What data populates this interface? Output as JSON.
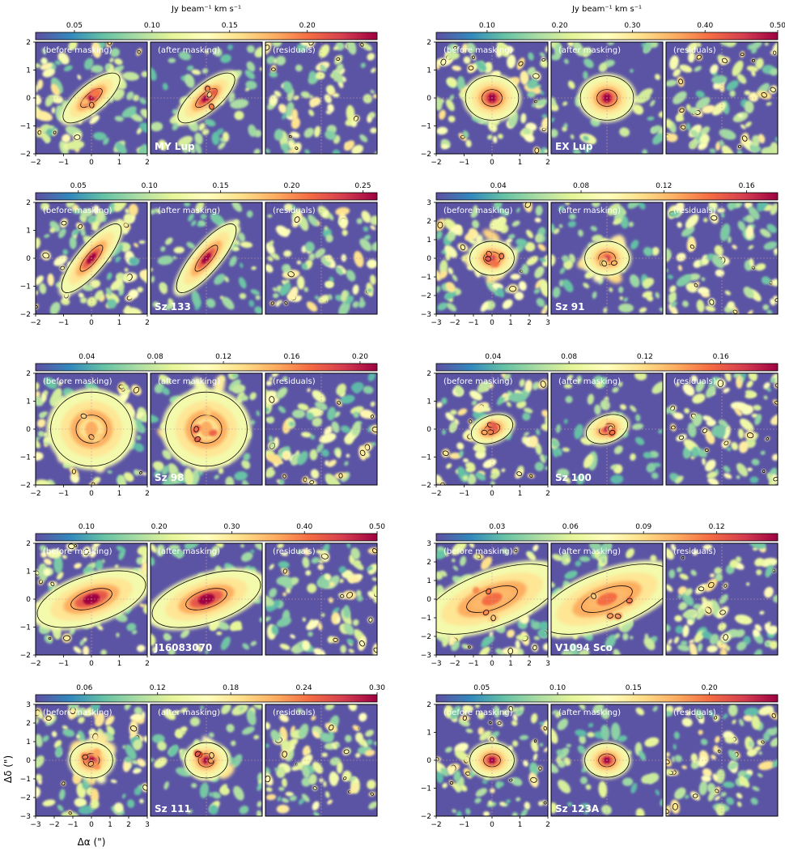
{
  "chart_data": {
    "type": "heatmap",
    "title": "",
    "colorbar_label": "Jy beam⁻¹ km s⁻¹",
    "panel_labels": [
      "(before masking)",
      "(after masking)",
      "(residuals)"
    ],
    "xlabel": "Δα (\")",
    "ylabel": "Δδ (\")",
    "colormap": [
      "#5e4fa2",
      "#3288bd",
      "#66c2a5",
      "#abdda4",
      "#e6f598",
      "#ffffbf",
      "#fee08b",
      "#fdae61",
      "#f46d43",
      "#d53e4f",
      "#9e0142"
    ],
    "background_color": "#5b54a4",
    "sources": [
      {
        "name": "MY Lup",
        "column": "left",
        "row": 1,
        "extent": 2,
        "x_ticks": [
          "−2",
          "−1",
          "0",
          "1",
          "2"
        ],
        "y_ticks": [
          "2",
          "1",
          "0",
          "−1",
          "−2"
        ],
        "cbar_ticks": [
          "0.05",
          "0.10",
          "0.15",
          "0.20"
        ],
        "cbar_range": [
          0.025,
          0.245
        ],
        "show_unit": true,
        "morphology": "elongated",
        "size": 0.18,
        "pa": -40,
        "ratio": 2.6,
        "peak": 1.0,
        "clumpy": true
      },
      {
        "name": "EX Lup",
        "column": "right",
        "row": 1,
        "extent": 2,
        "x_ticks": [
          "−2",
          "−1",
          "0",
          "1",
          "2"
        ],
        "y_ticks": [
          "2",
          "1",
          "0",
          "−1",
          "−2"
        ],
        "cbar_ticks": [
          "0.10",
          "0.20",
          "0.30",
          "0.40",
          "0.50"
        ],
        "cbar_range": [
          0.03,
          0.5
        ],
        "show_unit": true,
        "morphology": "compact",
        "size": 0.2,
        "pa": 0,
        "ratio": 1.2,
        "peak": 1.0,
        "clumpy": false
      },
      {
        "name": "Sz 133",
        "column": "left",
        "row": 2,
        "extent": 2,
        "x_ticks": [
          "−2",
          "−1",
          "0",
          "1",
          "2"
        ],
        "y_ticks": [
          "2",
          "1",
          "0",
          "−1",
          "−2"
        ],
        "cbar_ticks": [
          "0.05",
          "0.10",
          "0.15",
          "0.20",
          "0.25"
        ],
        "cbar_range": [
          0.02,
          0.26
        ],
        "show_unit": false,
        "morphology": "elongated",
        "size": 0.2,
        "pa": -50,
        "ratio": 3.2,
        "peak": 1.0,
        "clumpy": false
      },
      {
        "name": "Sz 91",
        "column": "right",
        "row": 2,
        "extent": 3,
        "x_ticks": [
          "−3",
          "−2",
          "−1",
          "0",
          "1",
          "2",
          "3"
        ],
        "y_ticks": [
          "3",
          "2",
          "1",
          "0",
          "−1",
          "−2",
          "−3"
        ],
        "cbar_ticks": [
          "0.04",
          "0.08",
          "0.12",
          "0.16"
        ],
        "cbar_range": [
          0.01,
          0.175
        ],
        "show_unit": false,
        "morphology": "ring",
        "size": 0.16,
        "pa": 0,
        "ratio": 1.3,
        "peak": 0.9,
        "clumpy": true
      },
      {
        "name": "Sz 98",
        "column": "left",
        "row": 3,
        "extent": 2,
        "x_ticks": [
          "−2",
          "−1",
          "0",
          "1",
          "2"
        ],
        "y_ticks": [
          "2",
          "1",
          "0",
          "−1",
          "−2"
        ],
        "cbar_ticks": [
          "0.04",
          "0.08",
          "0.12",
          "0.16",
          "0.20"
        ],
        "cbar_range": [
          0.01,
          0.21
        ],
        "show_unit": false,
        "morphology": "extended",
        "size": 0.32,
        "pa": 0,
        "ratio": 1.1,
        "peak": 0.7,
        "clumpy": true
      },
      {
        "name": "Sz 100",
        "column": "right",
        "row": 3,
        "extent": 2,
        "x_ticks": [
          "−2",
          "−1",
          "0",
          "1",
          "2"
        ],
        "y_ticks": [
          "2",
          "1",
          "0",
          "−1",
          "−2"
        ],
        "cbar_ticks": [
          "0.04",
          "0.08",
          "0.12",
          "0.16"
        ],
        "cbar_range": [
          0.01,
          0.19
        ],
        "show_unit": false,
        "morphology": "compact",
        "size": 0.14,
        "pa": -20,
        "ratio": 1.6,
        "peak": 0.95,
        "clumpy": true
      },
      {
        "name": "J16083070",
        "column": "left",
        "row": 4,
        "extent": 2,
        "x_ticks": [
          "−2",
          "−1",
          "0",
          "1",
          "2"
        ],
        "y_ticks": [
          "2",
          "1",
          "0",
          "−1",
          "−2"
        ],
        "cbar_ticks": [
          "0.10",
          "0.20",
          "0.30",
          "0.40",
          "0.50"
        ],
        "cbar_range": [
          0.03,
          0.5
        ],
        "show_unit": false,
        "morphology": "elongated",
        "size": 0.3,
        "pa": -18,
        "ratio": 2.4,
        "peak": 1.0,
        "clumpy": false
      },
      {
        "name": "V1094 Sco",
        "column": "right",
        "row": 4,
        "extent": 3,
        "x_ticks": [
          "−3",
          "−2",
          "−1",
          "0",
          "1",
          "2",
          "3"
        ],
        "y_ticks": [
          "3",
          "2",
          "1",
          "0",
          "−1",
          "−2",
          "−3"
        ],
        "cbar_ticks": [
          "0.03",
          "0.06",
          "0.09",
          "0.12"
        ],
        "cbar_range": [
          0.005,
          0.145
        ],
        "show_unit": false,
        "morphology": "elongated",
        "size": 0.36,
        "pa": -20,
        "ratio": 2.6,
        "peak": 0.8,
        "clumpy": true
      },
      {
        "name": "Sz 111",
        "column": "left",
        "row": 5,
        "extent": 3,
        "x_ticks": [
          "−3",
          "−2",
          "−1",
          "0",
          "1",
          "2",
          "3"
        ],
        "y_ticks": [
          "3",
          "2",
          "1",
          "0",
          "−1",
          "−2",
          "−3"
        ],
        "cbar_ticks": [
          "0.06",
          "0.12",
          "0.18",
          "0.24",
          "0.30"
        ],
        "cbar_range": [
          0.02,
          0.3
        ],
        "show_unit": false,
        "morphology": "ring",
        "size": 0.16,
        "pa": 0,
        "ratio": 1.2,
        "peak": 1.0,
        "clumpy": true
      },
      {
        "name": "Sz 123A",
        "column": "right",
        "row": 5,
        "extent": 2,
        "x_ticks": [
          "−2",
          "−1",
          "0",
          "1",
          "2"
        ],
        "y_ticks": [
          "2",
          "1",
          "0",
          "−1",
          "−2"
        ],
        "cbar_ticks": [
          "0.05",
          "0.10",
          "0.15",
          "0.20"
        ],
        "cbar_range": [
          0.02,
          0.245
        ],
        "show_unit": false,
        "morphology": "compact",
        "size": 0.16,
        "pa": 0,
        "ratio": 1.3,
        "peak": 1.0,
        "clumpy": false
      }
    ]
  }
}
